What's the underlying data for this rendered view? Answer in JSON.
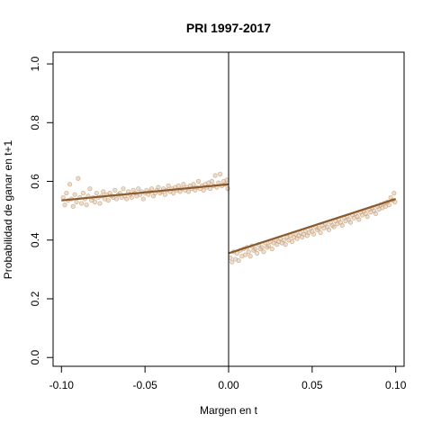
{
  "chart_data": {
    "type": "scatter",
    "title": "PRI 1997-2017",
    "xlabel": "Margen en t",
    "ylabel": "Probabilidad de ganar en t+1",
    "xlim": [
      -0.105,
      0.105
    ],
    "ylim": [
      -0.03,
      1.04
    ],
    "x_ticks": [
      -0.1,
      -0.05,
      0.0,
      0.05,
      0.1
    ],
    "x_tick_labels": [
      "-0.10",
      "-0.05",
      "0.00",
      "0.05",
      "0.10"
    ],
    "y_ticks": [
      0.0,
      0.2,
      0.4,
      0.6,
      0.8,
      1.0
    ],
    "y_tick_labels": [
      "0.0",
      "0.2",
      "0.4",
      "0.6",
      "0.8",
      "1.0"
    ],
    "cutoff": 0.0,
    "grid": false,
    "point_color": "#c8a27a",
    "line_color": "#8b5a2b",
    "fit_lines": [
      {
        "x": [
          -0.1,
          0.0
        ],
        "y": [
          0.535,
          0.59
        ]
      },
      {
        "x": [
          0.0,
          0.1
        ],
        "y": [
          0.355,
          0.54
        ]
      }
    ],
    "points": [
      [
        -0.099,
        0.545
      ],
      [
        -0.098,
        0.52
      ],
      [
        -0.097,
        0.56
      ],
      [
        -0.096,
        0.535
      ],
      [
        -0.095,
        0.59
      ],
      [
        -0.094,
        0.54
      ],
      [
        -0.093,
        0.515
      ],
      [
        -0.092,
        0.555
      ],
      [
        -0.091,
        0.53
      ],
      [
        -0.09,
        0.61
      ],
      [
        -0.089,
        0.545
      ],
      [
        -0.088,
        0.525
      ],
      [
        -0.087,
        0.56
      ],
      [
        -0.086,
        0.54
      ],
      [
        -0.085,
        0.52
      ],
      [
        -0.084,
        0.55
      ],
      [
        -0.083,
        0.575
      ],
      [
        -0.082,
        0.535
      ],
      [
        -0.081,
        0.545
      ],
      [
        -0.08,
        0.53
      ],
      [
        -0.079,
        0.56
      ],
      [
        -0.078,
        0.545
      ],
      [
        -0.077,
        0.525
      ],
      [
        -0.076,
        0.55
      ],
      [
        -0.075,
        0.565
      ],
      [
        -0.074,
        0.54
      ],
      [
        -0.073,
        0.555
      ],
      [
        -0.072,
        0.535
      ],
      [
        -0.071,
        0.56
      ],
      [
        -0.07,
        0.55
      ],
      [
        -0.069,
        0.545
      ],
      [
        -0.068,
        0.57
      ],
      [
        -0.067,
        0.54
      ],
      [
        -0.066,
        0.555
      ],
      [
        -0.065,
        0.56
      ],
      [
        -0.064,
        0.545
      ],
      [
        -0.063,
        0.575
      ],
      [
        -0.062,
        0.55
      ],
      [
        -0.061,
        0.54
      ],
      [
        -0.06,
        0.565
      ],
      [
        -0.059,
        0.555
      ],
      [
        -0.058,
        0.545
      ],
      [
        -0.057,
        0.57
      ],
      [
        -0.056,
        0.56
      ],
      [
        -0.055,
        0.55
      ],
      [
        -0.054,
        0.575
      ],
      [
        -0.053,
        0.555
      ],
      [
        -0.052,
        0.565
      ],
      [
        -0.051,
        0.54
      ],
      [
        -0.05,
        0.56
      ],
      [
        -0.049,
        0.57
      ],
      [
        -0.048,
        0.555
      ],
      [
        -0.047,
        0.565
      ],
      [
        -0.046,
        0.575
      ],
      [
        -0.045,
        0.55
      ],
      [
        -0.044,
        0.56
      ],
      [
        -0.043,
        0.57
      ],
      [
        -0.042,
        0.58
      ],
      [
        -0.041,
        0.56
      ],
      [
        -0.04,
        0.565
      ],
      [
        -0.039,
        0.575
      ],
      [
        -0.038,
        0.555
      ],
      [
        -0.037,
        0.57
      ],
      [
        -0.036,
        0.585
      ],
      [
        -0.035,
        0.565
      ],
      [
        -0.034,
        0.575
      ],
      [
        -0.033,
        0.56
      ],
      [
        -0.032,
        0.58
      ],
      [
        -0.031,
        0.57
      ],
      [
        -0.03,
        0.585
      ],
      [
        -0.029,
        0.565
      ],
      [
        -0.028,
        0.575
      ],
      [
        -0.027,
        0.59
      ],
      [
        -0.026,
        0.57
      ],
      [
        -0.025,
        0.58
      ],
      [
        -0.024,
        0.565
      ],
      [
        -0.023,
        0.585
      ],
      [
        -0.022,
        0.575
      ],
      [
        -0.021,
        0.59
      ],
      [
        -0.02,
        0.57
      ],
      [
        -0.019,
        0.58
      ],
      [
        -0.018,
        0.6
      ],
      [
        -0.017,
        0.575
      ],
      [
        -0.016,
        0.585
      ],
      [
        -0.015,
        0.57
      ],
      [
        -0.014,
        0.59
      ],
      [
        -0.013,
        0.58
      ],
      [
        -0.012,
        0.595
      ],
      [
        -0.011,
        0.575
      ],
      [
        -0.01,
        0.6
      ],
      [
        -0.009,
        0.585
      ],
      [
        -0.008,
        0.62
      ],
      [
        -0.007,
        0.58
      ],
      [
        -0.006,
        0.595
      ],
      [
        -0.005,
        0.625
      ],
      [
        -0.004,
        0.585
      ],
      [
        -0.003,
        0.6
      ],
      [
        -0.002,
        0.59
      ],
      [
        -0.001,
        0.605
      ],
      [
        -0.0005,
        0.575
      ],
      [
        0.001,
        0.34
      ],
      [
        0.002,
        0.325
      ],
      [
        0.003,
        0.36
      ],
      [
        0.004,
        0.335
      ],
      [
        0.005,
        0.355
      ],
      [
        0.006,
        0.33
      ],
      [
        0.007,
        0.365
      ],
      [
        0.008,
        0.345
      ],
      [
        0.009,
        0.37
      ],
      [
        0.01,
        0.35
      ],
      [
        0.011,
        0.375
      ],
      [
        0.012,
        0.36
      ],
      [
        0.013,
        0.345
      ],
      [
        0.014,
        0.38
      ],
      [
        0.015,
        0.365
      ],
      [
        0.016,
        0.37
      ],
      [
        0.017,
        0.355
      ],
      [
        0.018,
        0.385
      ],
      [
        0.019,
        0.37
      ],
      [
        0.02,
        0.375
      ],
      [
        0.021,
        0.36
      ],
      [
        0.022,
        0.39
      ],
      [
        0.023,
        0.375
      ],
      [
        0.024,
        0.38
      ],
      [
        0.025,
        0.395
      ],
      [
        0.026,
        0.37
      ],
      [
        0.027,
        0.39
      ],
      [
        0.028,
        0.4
      ],
      [
        0.029,
        0.385
      ],
      [
        0.03,
        0.395
      ],
      [
        0.031,
        0.405
      ],
      [
        0.032,
        0.39
      ],
      [
        0.033,
        0.4
      ],
      [
        0.034,
        0.385
      ],
      [
        0.035,
        0.41
      ],
      [
        0.036,
        0.4
      ],
      [
        0.037,
        0.415
      ],
      [
        0.038,
        0.395
      ],
      [
        0.039,
        0.41
      ],
      [
        0.04,
        0.42
      ],
      [
        0.041,
        0.405
      ],
      [
        0.042,
        0.415
      ],
      [
        0.043,
        0.425
      ],
      [
        0.044,
        0.41
      ],
      [
        0.045,
        0.42
      ],
      [
        0.046,
        0.43
      ],
      [
        0.047,
        0.415
      ],
      [
        0.048,
        0.425
      ],
      [
        0.049,
        0.44
      ],
      [
        0.05,
        0.43
      ],
      [
        0.051,
        0.42
      ],
      [
        0.052,
        0.445
      ],
      [
        0.053,
        0.435
      ],
      [
        0.054,
        0.44
      ],
      [
        0.055,
        0.425
      ],
      [
        0.056,
        0.45
      ],
      [
        0.057,
        0.44
      ],
      [
        0.058,
        0.455
      ],
      [
        0.059,
        0.445
      ],
      [
        0.06,
        0.435
      ],
      [
        0.061,
        0.46
      ],
      [
        0.062,
        0.45
      ],
      [
        0.063,
        0.445
      ],
      [
        0.064,
        0.465
      ],
      [
        0.065,
        0.455
      ],
      [
        0.066,
        0.47
      ],
      [
        0.067,
        0.46
      ],
      [
        0.068,
        0.45
      ],
      [
        0.069,
        0.475
      ],
      [
        0.07,
        0.465
      ],
      [
        0.071,
        0.48
      ],
      [
        0.072,
        0.47
      ],
      [
        0.073,
        0.46
      ],
      [
        0.074,
        0.485
      ],
      [
        0.075,
        0.475
      ],
      [
        0.076,
        0.49
      ],
      [
        0.077,
        0.48
      ],
      [
        0.078,
        0.47
      ],
      [
        0.079,
        0.495
      ],
      [
        0.08,
        0.485
      ],
      [
        0.081,
        0.5
      ],
      [
        0.082,
        0.49
      ],
      [
        0.083,
        0.48
      ],
      [
        0.084,
        0.505
      ],
      [
        0.085,
        0.495
      ],
      [
        0.086,
        0.51
      ],
      [
        0.087,
        0.5
      ],
      [
        0.088,
        0.49
      ],
      [
        0.089,
        0.515
      ],
      [
        0.09,
        0.505
      ],
      [
        0.091,
        0.52
      ],
      [
        0.092,
        0.51
      ],
      [
        0.093,
        0.525
      ],
      [
        0.094,
        0.515
      ],
      [
        0.095,
        0.53
      ],
      [
        0.096,
        0.52
      ],
      [
        0.097,
        0.545
      ],
      [
        0.098,
        0.535
      ],
      [
        0.099,
        0.56
      ],
      [
        0.0995,
        0.53
      ]
    ]
  }
}
